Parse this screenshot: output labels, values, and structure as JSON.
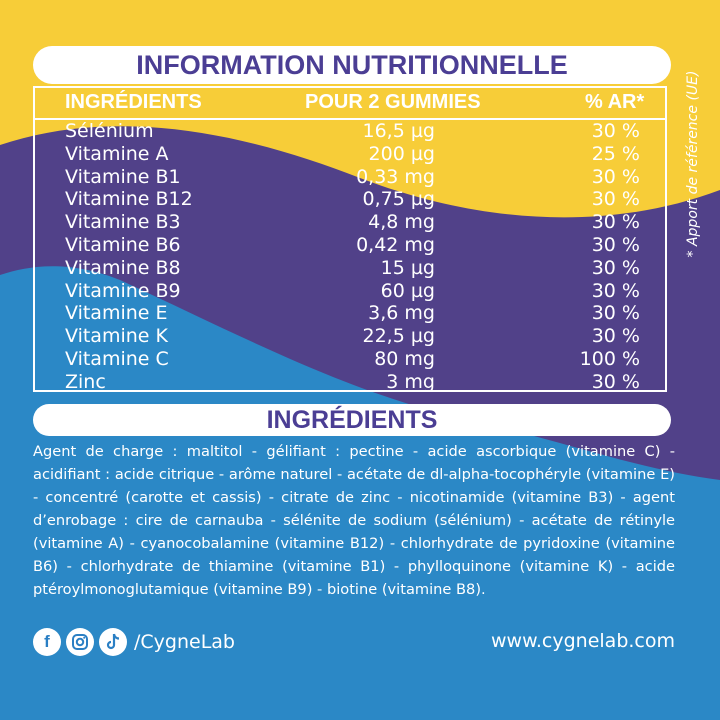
{
  "colors": {
    "yellow": "#f7cd38",
    "purple": "#514189",
    "blue": "#2b88c6",
    "white": "#ffffff"
  },
  "title": "INFORMATION NUTRITIONNELLE",
  "table": {
    "headers": {
      "ingredients": "INGRÉDIENTS",
      "dose": "POUR 2 GUMMIES",
      "ar": "% AR*"
    },
    "rows": [
      {
        "name": "Sélénium",
        "amount": "16,5 µg",
        "percent": "30 %"
      },
      {
        "name": "Vitamine A",
        "amount": "200 µg",
        "percent": "25 %"
      },
      {
        "name": "Vitamine B1",
        "amount": "0,33 mg",
        "percent": "30 %"
      },
      {
        "name": "Vitamine B12",
        "amount": "0,75 µg",
        "percent": "30 %"
      },
      {
        "name": "Vitamine B3",
        "amount": "4,8 mg",
        "percent": "30 %"
      },
      {
        "name": "Vitamine B6",
        "amount": "0,42 mg",
        "percent": "30 %"
      },
      {
        "name": "Vitamine B8",
        "amount": "15 µg",
        "percent": "30 %"
      },
      {
        "name": "Vitamine B9",
        "amount": "60 µg",
        "percent": "30 %"
      },
      {
        "name": "Vitamine E",
        "amount": "3,6 mg",
        "percent": "30 %"
      },
      {
        "name": "Vitamine K",
        "amount": "22,5 µg",
        "percent": "30 %"
      },
      {
        "name": "Vitamine C",
        "amount": "80 mg",
        "percent": "100 %"
      },
      {
        "name": "Zinc",
        "amount": "3 mg",
        "percent": "30 %"
      }
    ]
  },
  "side_note": "* Apport de référence (UE)",
  "ingredients": {
    "title": "INGRÉDIENTS",
    "text": "Agent de charge : maltitol - gélifiant : pectine - acide ascorbique (vitamine C) - acidifiant : acide citrique - arôme naturel - acétate de dl-alpha-tocophéryle (vitamine E) - concentré (carotte et cassis) - citrate de zinc - nicotinamide (vitamine B3) - agent d’enrobage : cire de carnauba - sélénite de sodium (sélénium) - acétate de rétinyle (vitamine A) - cyanocobalamine (vitamine B12) - chlorhydrate de pyridoxine (vitamine B6) - chlorhydrate de thiamine (vitamine B1) - phylloquinone (vitamine K) - acide ptéroylmonoglutamique (vitamine B9) - biotine (vitamine B8)."
  },
  "footer": {
    "icons": [
      "facebook-icon",
      "instagram-icon",
      "tiktok-icon"
    ],
    "handle": "/CygneLab",
    "website": "www.cygnelab.com"
  }
}
